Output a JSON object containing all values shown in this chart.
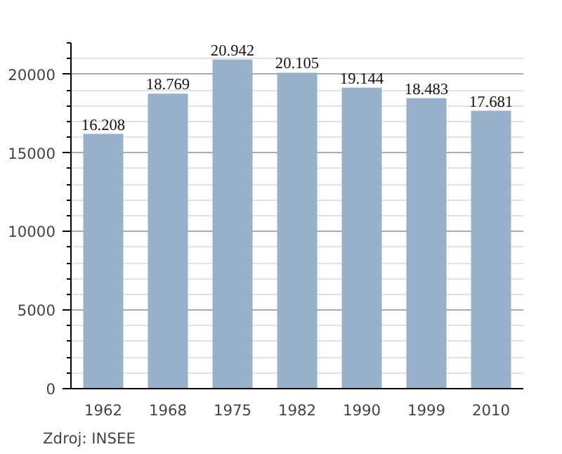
{
  "chart_data": {
    "type": "bar",
    "categories": [
      "1962",
      "1968",
      "1975",
      "1982",
      "1990",
      "1999",
      "2010"
    ],
    "values": [
      16208,
      18769,
      20942,
      20105,
      19144,
      18483,
      17681
    ],
    "value_labels": [
      "16.208",
      "18.769",
      "20.942",
      "20.105",
      "19.144",
      "18.483",
      "17.681"
    ],
    "color": "#98b0cb",
    "ylim": [
      0,
      22000
    ],
    "yticks": [
      0,
      5000,
      10000,
      15000,
      20000
    ],
    "grid": "y",
    "annotations": [
      "Zdroj: INSEE"
    ]
  }
}
